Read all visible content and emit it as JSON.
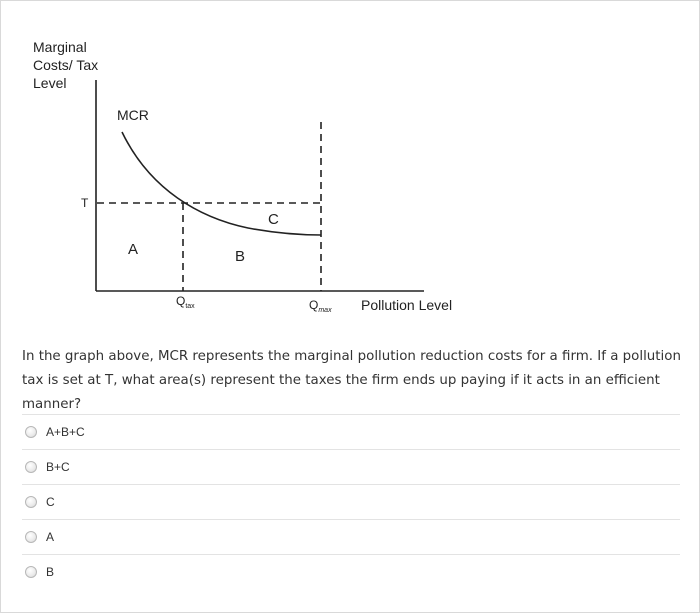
{
  "graph": {
    "y_axis_label_lines": [
      "Marginal",
      "Costs/ Tax",
      "Level"
    ],
    "x_axis_label": "Pollution Level",
    "curve_label": "MCR",
    "tax_level_label": "T",
    "area_labels": {
      "a": "A",
      "b": "B",
      "c": "C"
    },
    "q_tax": {
      "main": "Q",
      "sub": "tax"
    },
    "q_max": {
      "main": "Q",
      "sub": "max"
    }
  },
  "question": {
    "text": "In the graph above, MCR represents the marginal pollution reduction costs for a firm. If a pollution tax is set at T, what area(s) represent the taxes the firm ends up paying if it acts in an efficient manner?"
  },
  "options": [
    {
      "label": "A+B+C",
      "selected": false
    },
    {
      "label": "B+C",
      "selected": false
    },
    {
      "label": "C",
      "selected": false
    },
    {
      "label": "A",
      "selected": false
    },
    {
      "label": "B",
      "selected": false
    }
  ]
}
